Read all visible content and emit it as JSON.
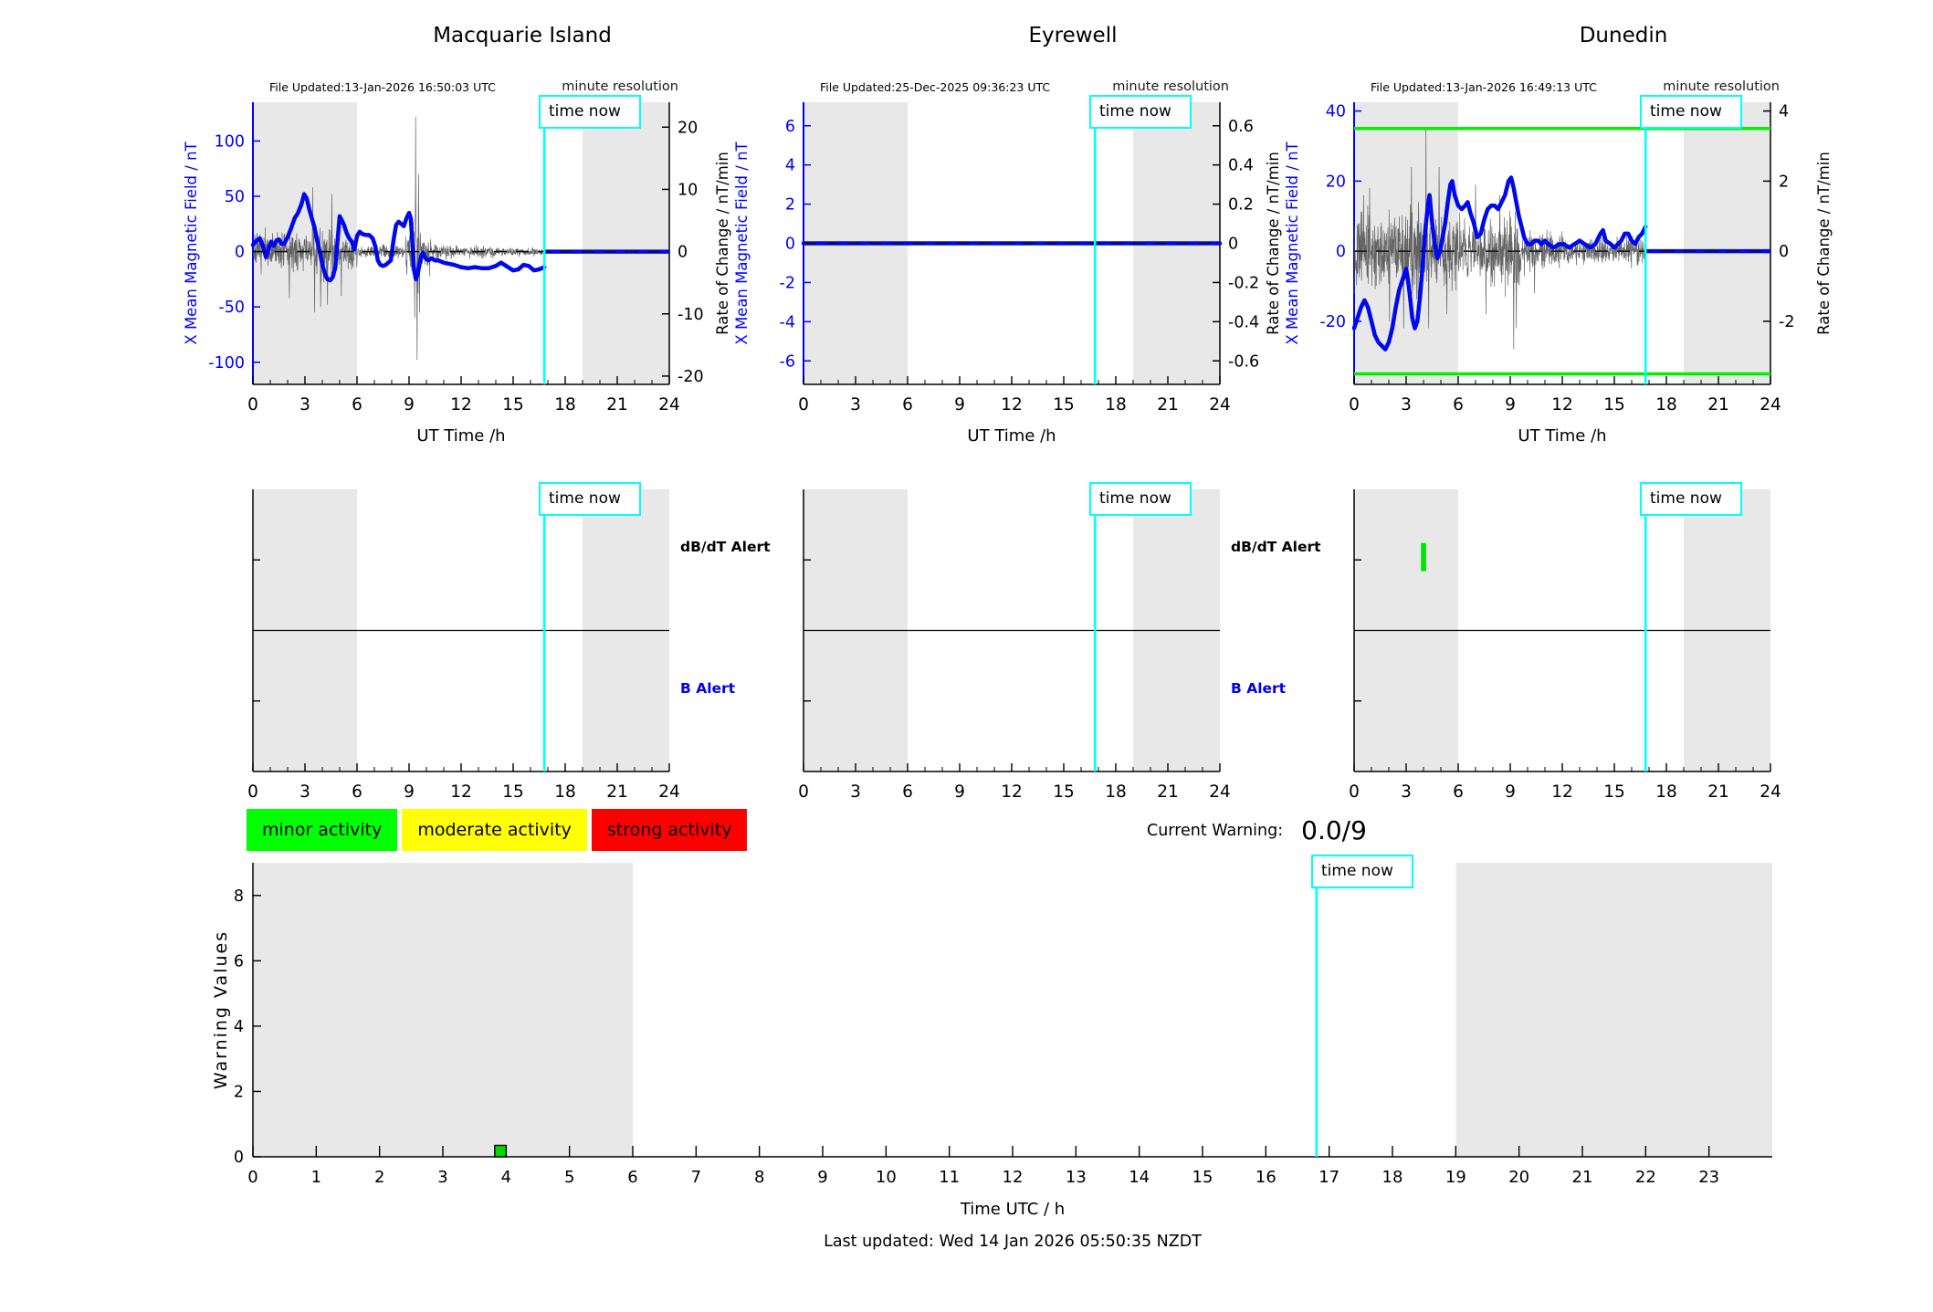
{
  "labels": {
    "time_now": "time now",
    "minute_resolution": "minute resolution",
    "ut_time_axis": "UT Time /h",
    "time_utc_axis": "Time UTC / h",
    "warning_values_axis": "Warning Values",
    "mean_field_axis": "X Mean Magnetic Field / nT",
    "rate_of_change_axis": "Rate of Change / nT/min",
    "dbdt_alert": "dB/dT Alert",
    "b_alert": "B Alert",
    "current_warning_label": "Current Warning:",
    "current_warning_value": "0.0/9",
    "last_updated": "Last updated: Wed 14 Jan 2026 05:50:35 NZDT"
  },
  "legend": [
    {
      "label": "minor activity",
      "color": "#00ff00"
    },
    {
      "label": "moderate activity",
      "color": "#ffff00"
    },
    {
      "label": "strong activity",
      "color": "#ff0000"
    }
  ],
  "colors": {
    "mean_line": "#0008ee",
    "axis_blue": "#0000ff",
    "noise_line": "#4a4a4a",
    "time_now": "#00ffff",
    "night_shade": "#e8e8e8",
    "threshold_green": "#00f000",
    "alert_event_green": "#00e400",
    "warning_bar_green": "#00d900",
    "spine_black": "#000000"
  },
  "chart_data": [
    {
      "type": "line",
      "kind": "magnetogram",
      "title": "Macquarie Island",
      "file_updated": "File Updated:13-Jan-2026 16:50:03 UTC",
      "xlabel": "UT Time /h",
      "ylabel_left": "X Mean Magnetic Field / nT",
      "ylabel_right": "Rate of Change / nT/min",
      "xlim": [
        0,
        24
      ],
      "xticks": [
        0,
        3,
        6,
        9,
        12,
        15,
        18,
        21,
        24
      ],
      "ylim": [
        -120,
        135
      ],
      "yticks_left": [
        100,
        50,
        0,
        -50,
        -100
      ],
      "yticks_right": [
        20,
        10,
        0,
        -10,
        -20
      ],
      "right_axis_ratio": 5.625,
      "time_now": 16.8,
      "night_shade": [
        [
          0,
          6
        ],
        [
          19,
          24
        ]
      ],
      "green_thresholds": [],
      "mean_series": [
        [
          0,
          6
        ],
        [
          0.2,
          10
        ],
        [
          0.4,
          12
        ],
        [
          0.55,
          6
        ],
        [
          0.75,
          -5
        ],
        [
          0.9,
          2
        ],
        [
          1.05,
          9
        ],
        [
          1.2,
          5
        ],
        [
          1.35,
          10
        ],
        [
          1.5,
          11
        ],
        [
          1.65,
          7
        ],
        [
          1.8,
          7
        ],
        [
          2,
          13
        ],
        [
          2.2,
          21
        ],
        [
          2.4,
          30
        ],
        [
          2.6,
          35
        ],
        [
          2.8,
          43
        ],
        [
          2.95,
          52
        ],
        [
          3.1,
          48
        ],
        [
          3.25,
          38
        ],
        [
          3.4,
          30
        ],
        [
          3.55,
          22
        ],
        [
          3.7,
          10
        ],
        [
          3.85,
          0
        ],
        [
          4,
          -12
        ],
        [
          4.15,
          -20
        ],
        [
          4.3,
          -25
        ],
        [
          4.45,
          -26
        ],
        [
          4.6,
          -23
        ],
        [
          4.75,
          -14
        ],
        [
          4.88,
          10
        ],
        [
          5,
          32
        ],
        [
          5.1,
          29
        ],
        [
          5.25,
          24
        ],
        [
          5.4,
          17
        ],
        [
          5.55,
          12
        ],
        [
          5.7,
          9
        ],
        [
          5.85,
          2
        ],
        [
          6,
          14
        ],
        [
          6.15,
          18
        ],
        [
          6.3,
          16
        ],
        [
          6.5,
          15
        ],
        [
          6.7,
          15
        ],
        [
          6.9,
          12
        ],
        [
          7.05,
          5
        ],
        [
          7.2,
          -8
        ],
        [
          7.35,
          -12
        ],
        [
          7.5,
          -13
        ],
        [
          7.65,
          -12
        ],
        [
          7.8,
          -10
        ],
        [
          7.95,
          -8
        ],
        [
          8.1,
          10
        ],
        [
          8.25,
          24
        ],
        [
          8.4,
          27
        ],
        [
          8.55,
          25
        ],
        [
          8.7,
          23
        ],
        [
          8.85,
          30
        ],
        [
          9,
          35
        ],
        [
          9.1,
          30
        ],
        [
          9.2,
          5
        ],
        [
          9.3,
          -18
        ],
        [
          9.4,
          -25
        ],
        [
          9.5,
          -20
        ],
        [
          9.6,
          -12
        ],
        [
          9.7,
          -4
        ],
        [
          9.8,
          -1
        ],
        [
          9.95,
          -6
        ],
        [
          10.1,
          -8
        ],
        [
          10.3,
          -6
        ],
        [
          10.5,
          -8
        ],
        [
          10.7,
          -8
        ],
        [
          11,
          -10
        ],
        [
          11.3,
          -11
        ],
        [
          11.6,
          -12
        ],
        [
          12,
          -14
        ],
        [
          12.4,
          -15
        ],
        [
          12.8,
          -14
        ],
        [
          13.2,
          -15
        ],
        [
          13.6,
          -15
        ],
        [
          14,
          -13
        ],
        [
          14.3,
          -10
        ],
        [
          14.6,
          -13
        ],
        [
          15,
          -17
        ],
        [
          15.3,
          -16
        ],
        [
          15.6,
          -12
        ],
        [
          15.9,
          -13
        ],
        [
          16.2,
          -17
        ],
        [
          16.5,
          -16
        ],
        [
          16.8,
          -14
        ]
      ],
      "forecast_series": [
        [
          16.8,
          0
        ],
        [
          24,
          0
        ]
      ],
      "noise": {
        "seed": 7,
        "envelope": [
          [
            0,
            0.5,
            14
          ],
          [
            0.5,
            2,
            16
          ],
          [
            2,
            3.3,
            15
          ],
          [
            3.3,
            4.7,
            22
          ],
          [
            4.7,
            6,
            14
          ],
          [
            6,
            7.5,
            5
          ],
          [
            7.5,
            8.8,
            6
          ],
          [
            8.8,
            9.2,
            22
          ],
          [
            9.2,
            9.65,
            40
          ],
          [
            9.65,
            10.3,
            14
          ],
          [
            10.3,
            11.5,
            6
          ],
          [
            11.5,
            14,
            4.5
          ],
          [
            14,
            16.81,
            3.5
          ]
        ],
        "spikes": [
          [
            2.1,
            -42
          ],
          [
            3.45,
            58
          ],
          [
            3.55,
            -55
          ],
          [
            3.9,
            -50
          ],
          [
            4.3,
            -48
          ],
          [
            4.55,
            52
          ],
          [
            5.1,
            -40
          ],
          [
            9.33,
            -60
          ],
          [
            9.38,
            122
          ],
          [
            9.47,
            -98
          ],
          [
            9.55,
            70
          ],
          [
            9.6,
            -55
          ]
        ]
      }
    },
    {
      "type": "line",
      "kind": "magnetogram",
      "title": "Eyrewell",
      "file_updated": "File Updated:25-Dec-2025 09:36:23 UTC",
      "xlabel": "UT Time /h",
      "ylabel_left": "X Mean Magnetic Field / nT",
      "ylabel_right": "Rate of Change / nT/min",
      "xlim": [
        0,
        24
      ],
      "xticks": [
        0,
        3,
        6,
        9,
        12,
        15,
        18,
        21,
        24
      ],
      "ylim": [
        -7.2,
        7.2
      ],
      "yticks_left": [
        6,
        4,
        2,
        0,
        -2,
        -4,
        -6
      ],
      "yticks_right": [
        0.6,
        0.4,
        0.2,
        0,
        -0.2,
        -0.4,
        -0.6
      ],
      "right_axis_ratio": 10,
      "time_now": 16.8,
      "night_shade": [
        [
          0,
          6
        ],
        [
          19,
          24
        ]
      ],
      "green_thresholds": [],
      "mean_series": [
        [
          0,
          0
        ],
        [
          24,
          0
        ]
      ],
      "forecast_series": [],
      "noise": null
    },
    {
      "type": "line",
      "kind": "magnetogram",
      "title": "Dunedin",
      "file_updated": "File Updated:13-Jan-2026 16:49:13 UTC",
      "xlabel": "UT Time /h",
      "ylabel_left": "X Mean Magnetic Field / nT",
      "ylabel_right": "Rate of Change / nT/min",
      "xlim": [
        0,
        24
      ],
      "xticks": [
        0,
        3,
        6,
        9,
        12,
        15,
        18,
        21,
        24
      ],
      "ylim": [
        -38,
        42.5
      ],
      "yticks_left": [
        40,
        20,
        0,
        -20
      ],
      "yticks_right": [
        4,
        2,
        0,
        -2
      ],
      "right_axis_ratio": 10,
      "time_now": 16.8,
      "night_shade": [
        [
          0,
          6
        ],
        [
          19,
          24
        ]
      ],
      "green_thresholds": [
        35,
        -35
      ],
      "mean_series": [
        [
          0,
          -22
        ],
        [
          0.2,
          -19
        ],
        [
          0.4,
          -16
        ],
        [
          0.6,
          -14
        ],
        [
          0.8,
          -16
        ],
        [
          1,
          -20
        ],
        [
          1.2,
          -24
        ],
        [
          1.4,
          -26
        ],
        [
          1.6,
          -27
        ],
        [
          1.8,
          -28
        ],
        [
          2,
          -26
        ],
        [
          2.2,
          -22
        ],
        [
          2.4,
          -16
        ],
        [
          2.6,
          -11
        ],
        [
          2.8,
          -8
        ],
        [
          3,
          -5
        ],
        [
          3.1,
          -8
        ],
        [
          3.2,
          -12
        ],
        [
          3.35,
          -19
        ],
        [
          3.5,
          -22
        ],
        [
          3.65,
          -20
        ],
        [
          3.8,
          -13
        ],
        [
          3.95,
          -4
        ],
        [
          4.1,
          6
        ],
        [
          4.25,
          13
        ],
        [
          4.35,
          16
        ],
        [
          4.5,
          8
        ],
        [
          4.65,
          2
        ],
        [
          4.8,
          -2
        ],
        [
          4.95,
          0
        ],
        [
          5.1,
          4
        ],
        [
          5.25,
          8
        ],
        [
          5.4,
          14
        ],
        [
          5.55,
          19
        ],
        [
          5.65,
          20
        ],
        [
          5.8,
          16
        ],
        [
          6,
          13
        ],
        [
          6.2,
          12
        ],
        [
          6.4,
          13
        ],
        [
          6.55,
          14
        ],
        [
          6.7,
          11
        ],
        [
          6.9,
          8
        ],
        [
          7.1,
          4
        ],
        [
          7.3,
          5
        ],
        [
          7.5,
          9
        ],
        [
          7.7,
          12
        ],
        [
          7.9,
          13
        ],
        [
          8.1,
          13
        ],
        [
          8.3,
          12
        ],
        [
          8.5,
          14
        ],
        [
          8.7,
          16
        ],
        [
          8.9,
          20
        ],
        [
          9.05,
          21
        ],
        [
          9.2,
          18
        ],
        [
          9.35,
          14
        ],
        [
          9.5,
          10
        ],
        [
          9.65,
          7
        ],
        [
          9.8,
          4
        ],
        [
          10,
          2
        ],
        [
          10.2,
          2
        ],
        [
          10.4,
          3
        ],
        [
          10.6,
          3
        ],
        [
          10.8,
          2
        ],
        [
          11,
          3
        ],
        [
          11.2,
          2
        ],
        [
          11.5,
          1
        ],
        [
          11.8,
          2
        ],
        [
          12.1,
          2
        ],
        [
          12.4,
          1
        ],
        [
          12.7,
          2
        ],
        [
          13,
          3
        ],
        [
          13.3,
          2
        ],
        [
          13.6,
          1
        ],
        [
          13.9,
          2
        ],
        [
          14.2,
          5
        ],
        [
          14.35,
          6
        ],
        [
          14.5,
          3
        ],
        [
          14.8,
          2
        ],
        [
          15,
          1
        ],
        [
          15.2,
          2
        ],
        [
          15.4,
          3
        ],
        [
          15.6,
          5
        ],
        [
          15.8,
          5
        ],
        [
          16,
          3
        ],
        [
          16.2,
          2
        ],
        [
          16.4,
          4
        ],
        [
          16.6,
          5
        ],
        [
          16.8,
          7
        ]
      ],
      "forecast_series": [
        [
          16.8,
          0
        ],
        [
          24,
          0
        ]
      ],
      "noise": {
        "seed": 13,
        "envelope": [
          [
            0,
            1.5,
            9
          ],
          [
            1.5,
            4,
            10
          ],
          [
            4,
            6,
            9
          ],
          [
            6,
            8,
            8
          ],
          [
            8,
            9.6,
            9
          ],
          [
            9.6,
            12,
            5
          ],
          [
            12,
            16.81,
            3.5
          ]
        ],
        "spikes": [
          [
            0.55,
            16
          ],
          [
            0.9,
            18
          ],
          [
            2.05,
            -20
          ],
          [
            2.85,
            -22
          ],
          [
            3.3,
            24
          ],
          [
            4.15,
            35
          ],
          [
            4.3,
            -22
          ],
          [
            4.9,
            24
          ],
          [
            5.35,
            -18
          ],
          [
            7,
            19
          ],
          [
            7.6,
            -18
          ],
          [
            8.4,
            16
          ],
          [
            9.2,
            -28
          ],
          [
            9.35,
            -22
          ],
          [
            10.4,
            -12
          ]
        ]
      }
    },
    {
      "type": "alert-timeline",
      "station": "Macquarie Island",
      "xlim": [
        0,
        24
      ],
      "xticks": [
        0,
        3,
        6,
        9,
        12,
        15,
        18,
        21,
        24
      ],
      "bands": [
        "dB/dT Alert",
        "B Alert"
      ],
      "time_now": 16.8,
      "night_shade": [
        [
          0,
          6
        ],
        [
          19,
          24
        ]
      ],
      "events": []
    },
    {
      "type": "alert-timeline",
      "station": "Eyrewell",
      "xlim": [
        0,
        24
      ],
      "xticks": [
        0,
        3,
        6,
        9,
        12,
        15,
        18,
        21,
        24
      ],
      "bands": [
        "dB/dT Alert",
        "B Alert"
      ],
      "time_now": 16.8,
      "night_shade": [
        [
          0,
          6
        ],
        [
          19,
          24
        ]
      ],
      "events": []
    },
    {
      "type": "alert-timeline",
      "station": "Dunedin",
      "xlim": [
        0,
        24
      ],
      "xticks": [
        0,
        3,
        6,
        9,
        12,
        15,
        18,
        21,
        24
      ],
      "bands": [
        "dB/dT Alert",
        "B Alert"
      ],
      "time_now": 16.8,
      "night_shade": [
        [
          0,
          6
        ],
        [
          19,
          24
        ]
      ],
      "events": [
        {
          "hour": 4.0,
          "band": "dB/dT Alert",
          "from": 0.42,
          "to": 0.62,
          "level": "minor"
        }
      ]
    },
    {
      "type": "bar",
      "kind": "warning-values",
      "ylabel": "Warning Values",
      "xlabel": "Time UTC / h",
      "ylim": [
        0,
        9
      ],
      "yticks": [
        0,
        2,
        4,
        6,
        8
      ],
      "xlim": [
        0,
        24
      ],
      "xticks": [
        0,
        1,
        2,
        3,
        4,
        5,
        6,
        7,
        8,
        9,
        10,
        11,
        12,
        13,
        14,
        15,
        16,
        17,
        18,
        19,
        20,
        21,
        22,
        23
      ],
      "time_now": 16.8,
      "night_shade": [
        [
          0,
          6
        ],
        [
          19,
          24
        ]
      ],
      "bars": [
        {
          "hour_from": 3.82,
          "hour_to": 4.0,
          "value": 0.35,
          "level": "minor"
        }
      ]
    }
  ]
}
